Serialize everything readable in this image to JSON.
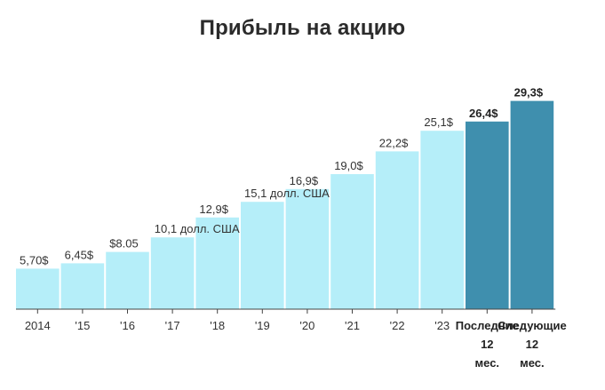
{
  "colors": {
    "bar_normal": "#b5eef9",
    "bar_highlight": "#3f8fae",
    "axis": "#444444"
  },
  "chart_data": {
    "type": "bar",
    "title": "Прибыль на акцию",
    "xlabel": "",
    "ylabel": "",
    "ylim": [
      0,
      31
    ],
    "grid": false,
    "categories": [
      "2014",
      "'15",
      "'16",
      "'17",
      "'18",
      "'19",
      "'20",
      "'21",
      "'22",
      "'23",
      "Последние 12 мес.",
      "Следующие 12 мес."
    ],
    "tick_lines": [
      [
        "2014"
      ],
      [
        "'15"
      ],
      [
        "'16"
      ],
      [
        "'17"
      ],
      [
        "'18"
      ],
      [
        "'19"
      ],
      [
        "'20"
      ],
      [
        "'21"
      ],
      [
        "'22"
      ],
      [
        "'23"
      ],
      [
        "Последние",
        "12",
        "мес."
      ],
      [
        "Следующие",
        "12",
        "мес."
      ]
    ],
    "values": [
      5.7,
      6.45,
      8.05,
      10.1,
      12.9,
      15.1,
      16.9,
      19.0,
      22.2,
      25.1,
      26.4,
      29.3
    ],
    "value_labels": [
      "5,70$",
      "6,45$",
      "$8.05",
      "10,1 долл. США",
      "12,9$",
      "15,1 долл. США",
      "16,9$",
      "19,0$",
      "22,2$",
      "25,1$",
      "26,4$",
      "29,3$"
    ],
    "highlighted": [
      false,
      false,
      false,
      false,
      false,
      false,
      false,
      false,
      false,
      false,
      true,
      true
    ]
  }
}
